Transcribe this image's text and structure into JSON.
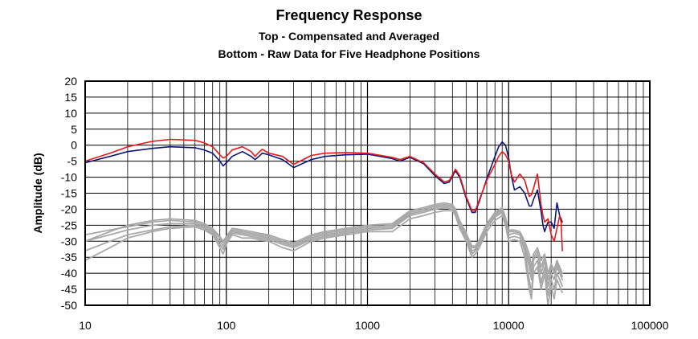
{
  "chart_data": {
    "type": "line",
    "title": "Frequency Response",
    "subtitle_lines": [
      "Top -  Compensated and Averaged",
      "Bottom - Raw Data for Five Headphone Positions"
    ],
    "xlabel": "",
    "ylabel": "Amplitude (dB)",
    "xscale": "log",
    "xlim": [
      10,
      100000
    ],
    "ylim": [
      -50,
      20
    ],
    "x_ticks": [
      10,
      100,
      1000,
      10000,
      100000
    ],
    "x_tick_labels": [
      "10",
      "100",
      "1000",
      "10000",
      "100000"
    ],
    "y_ticks": [
      20,
      15,
      10,
      5,
      0,
      -5,
      -10,
      -15,
      -20,
      -25,
      -30,
      -35,
      -40,
      -45,
      -50
    ],
    "y_tick_labels": [
      "20",
      "15",
      "10",
      "5",
      "0",
      "-5",
      "-10",
      "-15",
      "-20",
      "-25",
      "-30",
      "-35",
      "-40",
      "-45",
      "-50"
    ],
    "grid": true,
    "legend": "none",
    "colors": {
      "compensated_red": "#e8191c",
      "compensated_navy": "#0c1677",
      "raw_gray": "#a8a8a8"
    },
    "series": [
      {
        "color": "#e8191c",
        "x": [
          10,
          15,
          20,
          30,
          40,
          60,
          70,
          80,
          90,
          95,
          100,
          110,
          130,
          150,
          160,
          170,
          180,
          200,
          250,
          300,
          400,
          500,
          700,
          1000,
          1500,
          1700,
          2000,
          2500,
          3000,
          3500,
          3800,
          4200,
          4500,
          5000,
          5500,
          5800,
          6200,
          7000,
          8000,
          8500,
          9000,
          9500,
          10000,
          10500,
          11000,
          12000,
          13000,
          14000,
          14500,
          15000,
          16000,
          17000,
          17500,
          18000,
          19000,
          20000,
          21000,
          22000,
          23000,
          23500,
          24000
        ],
        "y": [
          -5,
          -2.5,
          -0.5,
          1.2,
          1.8,
          1.5,
          0.7,
          -0.5,
          -3,
          -4,
          -3.5,
          -1.5,
          -0.5,
          -2,
          -3.5,
          -2.2,
          -1.3,
          -2.5,
          -3.5,
          -6,
          -3.2,
          -2.5,
          -2.3,
          -2.5,
          -3.8,
          -4.5,
          -3.5,
          -5.5,
          -9,
          -11.5,
          -11,
          -7.5,
          -9.5,
          -16,
          -20.5,
          -20.5,
          -17,
          -11,
          -6,
          -3.5,
          -2,
          -3,
          -5,
          -9.5,
          -11.5,
          -9,
          -11,
          -16,
          -15.5,
          -13.5,
          -9,
          -19,
          -22,
          -24,
          -23,
          -28,
          -30,
          -26,
          -22,
          -24,
          -33
        ]
      },
      {
        "color": "#0c1677",
        "x": [
          10,
          15,
          20,
          30,
          40,
          60,
          70,
          80,
          90,
          95,
          100,
          110,
          130,
          150,
          160,
          170,
          180,
          200,
          250,
          300,
          400,
          500,
          700,
          1000,
          1500,
          1700,
          2000,
          2500,
          3000,
          3500,
          3800,
          4200,
          4500,
          5000,
          5500,
          5800,
          6200,
          7000,
          8000,
          8500,
          9000,
          9500,
          10000,
          10500,
          11000,
          12000,
          13000,
          14000,
          14500,
          15000,
          16000,
          17000,
          17500,
          18000,
          19000,
          20000,
          21000,
          22000,
          23000,
          23500,
          24000
        ],
        "y": [
          -5.5,
          -3.5,
          -2,
          -1,
          -0.5,
          -0.8,
          -1.5,
          -2.5,
          -5,
          -6.5,
          -5.5,
          -3.5,
          -2,
          -3.5,
          -4.5,
          -3.5,
          -2.5,
          -3,
          -4.5,
          -7,
          -4.5,
          -3.5,
          -3,
          -2.8,
          -4.2,
          -5,
          -3.8,
          -5.8,
          -9.5,
          -12,
          -11.5,
          -8,
          -10,
          -16.5,
          -21,
          -21,
          -17.5,
          -10.5,
          -3.5,
          -0.5,
          1,
          0,
          -4,
          -10,
          -14,
          -13,
          -15,
          -19,
          -19,
          -17,
          -14,
          -21,
          -25,
          -27,
          -24,
          -24,
          -26,
          -18,
          -22,
          -23,
          -24
        ]
      },
      {
        "color": "#a8a8a8",
        "x": [
          10,
          15,
          20,
          30,
          40,
          60,
          70,
          80,
          90,
          95,
          100,
          110,
          130,
          150,
          170,
          200,
          250,
          300,
          400,
          500,
          700,
          1000,
          1500,
          2000,
          2500,
          3000,
          3500,
          4000,
          4200,
          4500,
          5000,
          5500,
          5800,
          6200,
          7000,
          8000,
          9000,
          9500,
          10000,
          11000,
          12000,
          13000,
          14000,
          14500,
          15000,
          16000,
          17000,
          18000,
          19000,
          20000,
          21000,
          22000,
          23000,
          24000
        ],
        "y": [
          -36,
          -32,
          -29,
          -27,
          -26,
          -25.5,
          -26.5,
          -28,
          -32,
          -34,
          -31,
          -28,
          -29,
          -29,
          -29.5,
          -30,
          -32,
          -33,
          -30,
          -29,
          -28,
          -27,
          -27,
          -23,
          -22,
          -21,
          -20.5,
          -20.5,
          -22,
          -26,
          -30,
          -35,
          -34,
          -32,
          -27,
          -23.5,
          -22,
          -25,
          -30,
          -29.5,
          -30,
          -35,
          -45,
          -48,
          -40,
          -38,
          -45,
          -40,
          -50,
          -44,
          -48,
          -42,
          -44,
          -46
        ]
      },
      {
        "color": "#a8a8a8",
        "x": [
          10,
          15,
          20,
          30,
          40,
          60,
          70,
          80,
          90,
          95,
          100,
          110,
          130,
          150,
          170,
          200,
          250,
          300,
          400,
          500,
          700,
          1000,
          1500,
          2000,
          2500,
          3000,
          3500,
          4000,
          4200,
          4500,
          5000,
          5500,
          5800,
          6200,
          7000,
          8000,
          9000,
          9500,
          10000,
          11000,
          12000,
          13000,
          14000,
          14500,
          15000,
          16000,
          17000,
          18000,
          19000,
          20000,
          21000,
          22000,
          23000,
          24000
        ],
        "y": [
          -33,
          -30,
          -28,
          -26.5,
          -25.5,
          -25,
          -26,
          -27.5,
          -31,
          -32.5,
          -30,
          -27.5,
          -28,
          -28.5,
          -29,
          -29.5,
          -31,
          -32,
          -29.5,
          -28.5,
          -27.5,
          -26.5,
          -26,
          -22,
          -21,
          -20,
          -19.5,
          -20,
          -21.5,
          -25,
          -29,
          -34,
          -33,
          -31,
          -26,
          -22.5,
          -21,
          -24,
          -29,
          -28.5,
          -29,
          -33,
          -42,
          -46,
          -38,
          -36,
          -43,
          -38,
          -47,
          -42,
          -45,
          -40,
          -42,
          -44
        ]
      },
      {
        "color": "#a8a8a8",
        "x": [
          10,
          15,
          20,
          30,
          40,
          60,
          70,
          80,
          90,
          95,
          100,
          110,
          130,
          150,
          170,
          200,
          250,
          300,
          400,
          500,
          700,
          1000,
          1500,
          2000,
          2500,
          3000,
          3500,
          4000,
          4200,
          4500,
          5000,
          5500,
          5800,
          6200,
          7000,
          8000,
          9000,
          9500,
          10000,
          11000,
          12000,
          13000,
          14000,
          14500,
          15000,
          16000,
          17000,
          18000,
          19000,
          20000,
          21000,
          22000,
          23000,
          24000
        ],
        "y": [
          -30,
          -28,
          -26.5,
          -25,
          -24.5,
          -24.5,
          -25.5,
          -27,
          -30,
          -31.5,
          -29.5,
          -27,
          -27.5,
          -28,
          -28.5,
          -29,
          -30.5,
          -31.5,
          -29,
          -28,
          -27,
          -26,
          -25.5,
          -21.5,
          -20.5,
          -19.5,
          -19,
          -19.5,
          -21,
          -24.5,
          -28.5,
          -33,
          -32.5,
          -30.5,
          -25.5,
          -22,
          -20.5,
          -23.5,
          -28,
          -27.5,
          -28,
          -32,
          -38,
          -42,
          -36,
          -34,
          -40,
          -36,
          -44,
          -40,
          -42,
          -38,
          -40,
          -42
        ]
      },
      {
        "color": "#a8a8a8",
        "x": [
          10,
          15,
          20,
          30,
          40,
          60,
          70,
          80,
          90,
          95,
          100,
          110,
          130,
          150,
          170,
          200,
          250,
          300,
          400,
          500,
          700,
          1000,
          1500,
          2000,
          2500,
          3000,
          3500,
          4000,
          4200,
          4500,
          5000,
          5500,
          5800,
          6200,
          7000,
          8000,
          9000,
          9500,
          10000,
          11000,
          12000,
          13000,
          14000,
          14500,
          15000,
          16000,
          17000,
          18000,
          19000,
          20000,
          21000,
          22000,
          23000,
          24000
        ],
        "y": [
          -28,
          -26.5,
          -25.5,
          -24,
          -23.5,
          -24,
          -25,
          -26.5,
          -29,
          -30.5,
          -29,
          -26.5,
          -27,
          -27.5,
          -28,
          -28.5,
          -30,
          -31,
          -28.5,
          -27.5,
          -26.5,
          -25.5,
          -25,
          -21,
          -20,
          -19,
          -18.5,
          -19,
          -20.5,
          -24,
          -28,
          -32,
          -32,
          -30,
          -25,
          -21.5,
          -20,
          -23,
          -27,
          -27,
          -27.5,
          -31,
          -36,
          -40,
          -35,
          -33,
          -38,
          -35,
          -42,
          -38,
          -40,
          -37,
          -39,
          -41
        ]
      },
      {
        "color": "#a8a8a8",
        "x": [
          10,
          15,
          20,
          30,
          40,
          60,
          70,
          80,
          90,
          95,
          100,
          110,
          130,
          150,
          170,
          200,
          250,
          300,
          400,
          500,
          700,
          1000,
          1500,
          2000,
          2500,
          3000,
          3500,
          4000,
          4200,
          4500,
          5000,
          5500,
          5800,
          6200,
          7000,
          8000,
          9000,
          9500,
          10000,
          11000,
          12000,
          13000,
          14000,
          14500,
          15000,
          16000,
          17000,
          18000,
          19000,
          20000,
          21000,
          22000,
          23000,
          24000
        ],
        "y": [
          -30,
          -27,
          -25,
          -23.5,
          -23,
          -23.5,
          -24.5,
          -26,
          -28.5,
          -30,
          -28.5,
          -26,
          -26.5,
          -27,
          -27.5,
          -28,
          -29.5,
          -30.5,
          -28,
          -27,
          -26,
          -25,
          -24.5,
          -20.5,
          -19.5,
          -18.5,
          -18,
          -18.5,
          -20,
          -23.5,
          -27.5,
          -31.5,
          -31.5,
          -29.5,
          -24.5,
          -21,
          -19.5,
          -22.5,
          -26.5,
          -26.5,
          -27,
          -30,
          -34,
          -38,
          -34,
          -32,
          -36,
          -34,
          -40,
          -37,
          -39,
          -36,
          -38,
          -40
        ]
      }
    ]
  }
}
